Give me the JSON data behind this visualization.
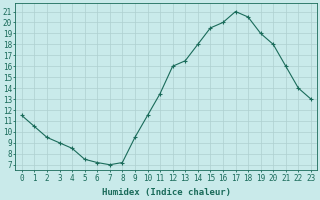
{
  "x": [
    0,
    1,
    2,
    3,
    4,
    5,
    6,
    7,
    8,
    9,
    10,
    11,
    12,
    13,
    14,
    15,
    16,
    17,
    18,
    19,
    20,
    21,
    22,
    23
  ],
  "y": [
    11.5,
    10.5,
    9.5,
    9.0,
    8.5,
    7.5,
    7.2,
    7.0,
    7.2,
    9.5,
    11.5,
    13.5,
    16.0,
    16.5,
    18.0,
    19.5,
    20.0,
    21.0,
    20.5,
    19.0,
    18.0,
    16.0,
    14.0,
    13.0
  ],
  "line_color": "#1a6b5a",
  "marker": "+",
  "bg_color": "#c9eaea",
  "grid_color": "#aed0d0",
  "grid_major_color": "#c0d8d8",
  "xlabel": "Humidex (Indice chaleur)",
  "ylabel_ticks": [
    7,
    8,
    9,
    10,
    11,
    12,
    13,
    14,
    15,
    16,
    17,
    18,
    19,
    20,
    21
  ],
  "xlim": [
    -0.5,
    23.5
  ],
  "ylim": [
    6.5,
    21.8
  ],
  "label_color": "#1a6b5a",
  "font_size": 5.5,
  "xlabel_fontsize": 6.5
}
